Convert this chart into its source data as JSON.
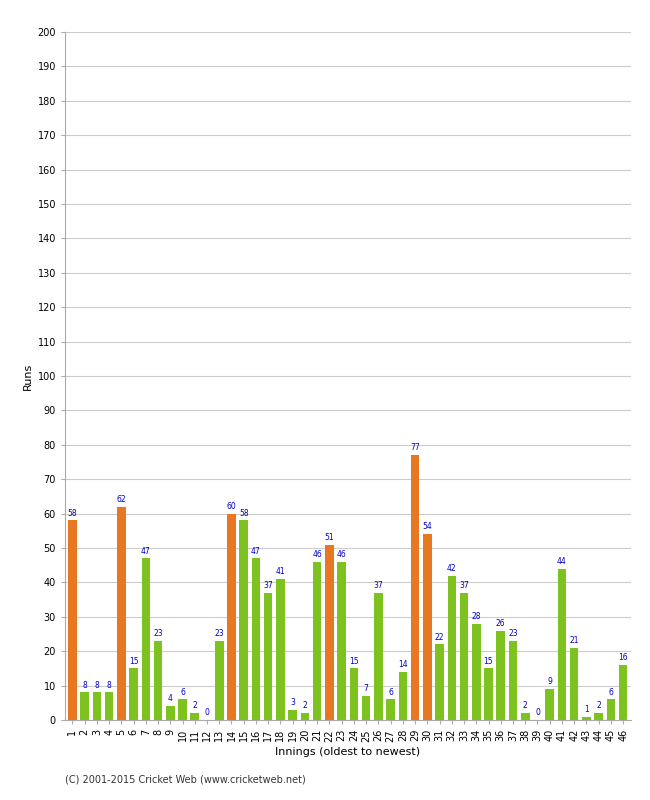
{
  "innings": [
    1,
    2,
    3,
    4,
    5,
    6,
    7,
    8,
    9,
    10,
    11,
    12,
    13,
    14,
    15,
    16,
    17,
    18,
    19,
    20,
    21,
    22,
    23,
    24,
    25,
    26,
    27,
    28,
    29,
    30,
    31,
    32,
    33,
    34,
    35,
    36,
    37,
    38,
    39,
    40,
    41,
    42,
    43,
    44,
    45,
    46
  ],
  "values": [
    58,
    8,
    8,
    8,
    62,
    15,
    47,
    23,
    4,
    6,
    2,
    0,
    23,
    60,
    58,
    47,
    37,
    41,
    3,
    2,
    46,
    51,
    46,
    15,
    7,
    37,
    6,
    14,
    77,
    54,
    22,
    42,
    37,
    28,
    15,
    26,
    23,
    2,
    0,
    9,
    44,
    21,
    1,
    2,
    6,
    16
  ],
  "orange_indices": [
    0,
    4,
    13,
    21,
    28,
    29
  ],
  "orange_color": "#e87722",
  "green_color": "#7dc21e",
  "bg_color": "#ffffff",
  "plot_bg_color": "#ffffff",
  "grid_color": "#cccccc",
  "label_color": "#0000cc",
  "ylabel": "Runs",
  "xlabel": "Innings (oldest to newest)",
  "ylim": [
    0,
    200
  ],
  "yticks": [
    0,
    10,
    20,
    30,
    40,
    50,
    60,
    70,
    80,
    90,
    100,
    110,
    120,
    130,
    140,
    150,
    160,
    170,
    180,
    190,
    200
  ],
  "footer": "(C) 2001-2015 Cricket Web (www.cricketweb.net)",
  "bar_width": 0.7,
  "label_fontsize": 5.5,
  "tick_fontsize": 7,
  "axis_label_fontsize": 8,
  "footer_fontsize": 7
}
